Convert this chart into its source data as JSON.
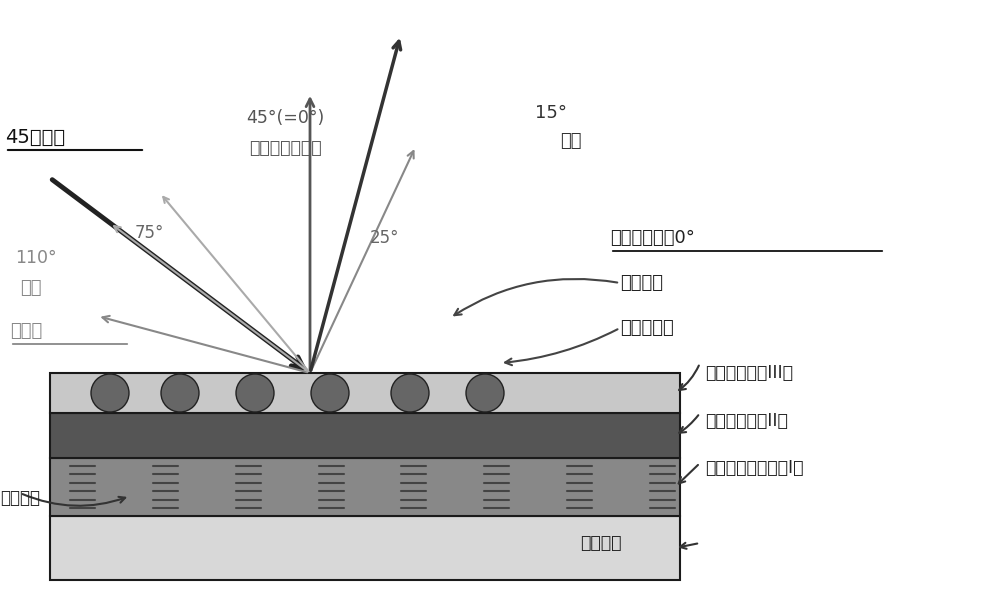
{
  "bg_color": "#ffffff",
  "title": "",
  "fig_width": 10.0,
  "fig_height": 5.98,
  "dpi": 100,
  "layer_colors": {
    "top_border": "#1a1a1a",
    "transparent_layer": "#c8c8c8",
    "retroreflective_layer": "#555555",
    "metallic_layer": "#888888",
    "undercoat_layer": "#d8d8d8",
    "bottom_border": "#1a1a1a"
  },
  "bead_color": "#666666",
  "labels": {
    "incident": "45度入射",
    "face_normal": "正面（正对面）",
    "face_angle": "45°(=0°)",
    "angle_75": "75°",
    "angle_25": "25°",
    "angle_15": "15°",
    "highlight": "高亮",
    "specular_label": "镜面反射光＝0°",
    "gloss_dist": "光泽分布",
    "high_refract": "高折射率珠",
    "transparent_coat": "透明涂膜层（III）",
    "retro_coat": "回射涂膜层（II）",
    "metallic_coat": "金属基底涂膜层（I）",
    "undercoat": "中涂涂层",
    "effect_pigment": "效应颜料",
    "angle_110": "110°",
    "shadow": "阴暗",
    "retroreflect": "回射光"
  },
  "arrow_color": "#444444",
  "dark_arrow_color": "#222222"
}
